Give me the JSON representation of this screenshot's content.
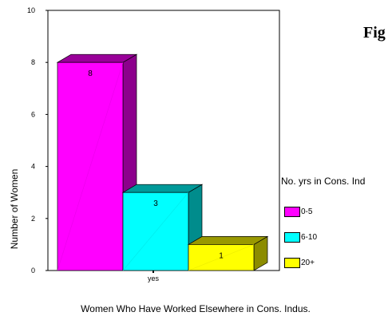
{
  "figure_label": "Fig",
  "chart_data": {
    "type": "bar",
    "categories": [
      "yes"
    ],
    "series": [
      {
        "name": "0-5",
        "values": [
          8
        ],
        "color": "#ff00ff"
      },
      {
        "name": "6-10",
        "values": [
          3
        ],
        "color": "#00ffff"
      },
      {
        "name": "20+",
        "values": [
          1
        ],
        "color": "#ffff00"
      }
    ],
    "xlabel": "Women Who Have Worked Elsewhere in Cons. Indus.",
    "ylabel": "Number of Women",
    "ylim": [
      0,
      10
    ],
    "yticks": [
      "0",
      "2",
      "4",
      "6",
      "8",
      "10"
    ],
    "legend_title": "No. yrs in Cons. Ind",
    "legend_position": "right",
    "style": "3d-bar"
  }
}
